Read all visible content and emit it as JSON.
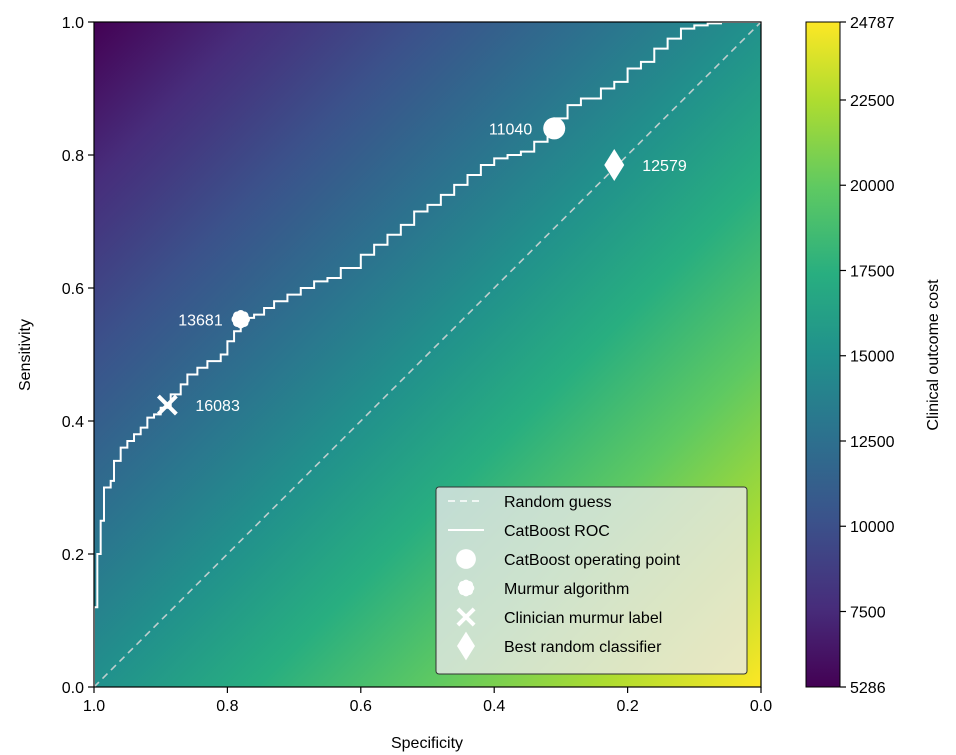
{
  "chart_data": {
    "type": "line",
    "xlabel": "Specificity",
    "ylabel": "Sensitivity",
    "xlim": [
      1.0,
      0.0
    ],
    "ylim": [
      0.0,
      1.0
    ],
    "x_reversed": true,
    "x_ticks": [
      "1.0",
      "0.8",
      "0.6",
      "0.4",
      "0.2",
      "0.0"
    ],
    "y_ticks": [
      "0.0",
      "0.2",
      "0.4",
      "0.6",
      "0.8",
      "1.0"
    ],
    "grid": false,
    "background_heatmap": {
      "description_label": "Clinical outcome cost",
      "min": 5286,
      "max": 24787,
      "colormap": "viridis",
      "low_cost_corner": "top-left",
      "high_cost_corner": "bottom-right"
    },
    "colorbar": {
      "label": "Clinical outcome cost",
      "ticks": [
        "5286",
        "7500",
        "10000",
        "12500",
        "15000",
        "17500",
        "20000",
        "22500",
        "24787"
      ]
    },
    "series": [
      {
        "name": "Random guess",
        "style": "dashed",
        "color": "#d9d9d9",
        "x": [
          1.0,
          0.0
        ],
        "y": [
          0.0,
          1.0
        ]
      },
      {
        "name": "CatBoost ROC",
        "style": "solid",
        "color": "#ffffff",
        "x": [
          1.0,
          0.995,
          0.99,
          0.985,
          0.975,
          0.97,
          0.96,
          0.95,
          0.94,
          0.93,
          0.92,
          0.91,
          0.9,
          0.885,
          0.87,
          0.86,
          0.845,
          0.83,
          0.82,
          0.81,
          0.8,
          0.79,
          0.78,
          0.775,
          0.76,
          0.745,
          0.73,
          0.71,
          0.69,
          0.67,
          0.65,
          0.63,
          0.6,
          0.58,
          0.56,
          0.54,
          0.52,
          0.5,
          0.48,
          0.46,
          0.44,
          0.42,
          0.4,
          0.38,
          0.36,
          0.34,
          0.32,
          0.31,
          0.29,
          0.27,
          0.24,
          0.22,
          0.2,
          0.18,
          0.16,
          0.14,
          0.12,
          0.1,
          0.08,
          0.06,
          0.04,
          0.02,
          0.0
        ],
        "y": [
          0.0,
          0.12,
          0.2,
          0.25,
          0.3,
          0.31,
          0.34,
          0.36,
          0.37,
          0.38,
          0.39,
          0.405,
          0.41,
          0.42,
          0.44,
          0.455,
          0.47,
          0.48,
          0.49,
          0.49,
          0.5,
          0.52,
          0.535,
          0.55,
          0.555,
          0.56,
          0.57,
          0.58,
          0.59,
          0.6,
          0.61,
          0.615,
          0.63,
          0.65,
          0.665,
          0.68,
          0.695,
          0.715,
          0.725,
          0.74,
          0.755,
          0.77,
          0.785,
          0.795,
          0.8,
          0.805,
          0.82,
          0.84,
          0.855,
          0.875,
          0.885,
          0.9,
          0.91,
          0.93,
          0.94,
          0.96,
          0.975,
          0.99,
          0.995,
          0.998,
          1.0,
          1.0,
          1.0
        ]
      }
    ],
    "points": [
      {
        "name": "CatBoost operating point",
        "marker": "circle",
        "x": 0.31,
        "y": 0.84,
        "label": "11040",
        "label_side": "left"
      },
      {
        "name": "Murmur algorithm",
        "marker": "star",
        "x": 0.78,
        "y": 0.553,
        "label": "13681",
        "label_side": "left"
      },
      {
        "name": "Clinician murmur label",
        "marker": "x",
        "x": 0.89,
        "y": 0.424,
        "label": "16083",
        "label_side": "right"
      },
      {
        "name": "Best random classifier",
        "marker": "diamond",
        "x": 0.22,
        "y": 0.785,
        "label": "12579",
        "label_side": "right"
      }
    ],
    "legend": {
      "placement": "lower-right",
      "entries": [
        {
          "label": "Random guess",
          "marker": "dashed-line"
        },
        {
          "label": "CatBoost ROC",
          "marker": "solid-line"
        },
        {
          "label": "CatBoost operating point",
          "marker": "circle"
        },
        {
          "label": "Murmur algorithm",
          "marker": "star"
        },
        {
          "label": "Clinician murmur label",
          "marker": "x"
        },
        {
          "label": "Best random classifier",
          "marker": "diamond"
        }
      ]
    }
  }
}
